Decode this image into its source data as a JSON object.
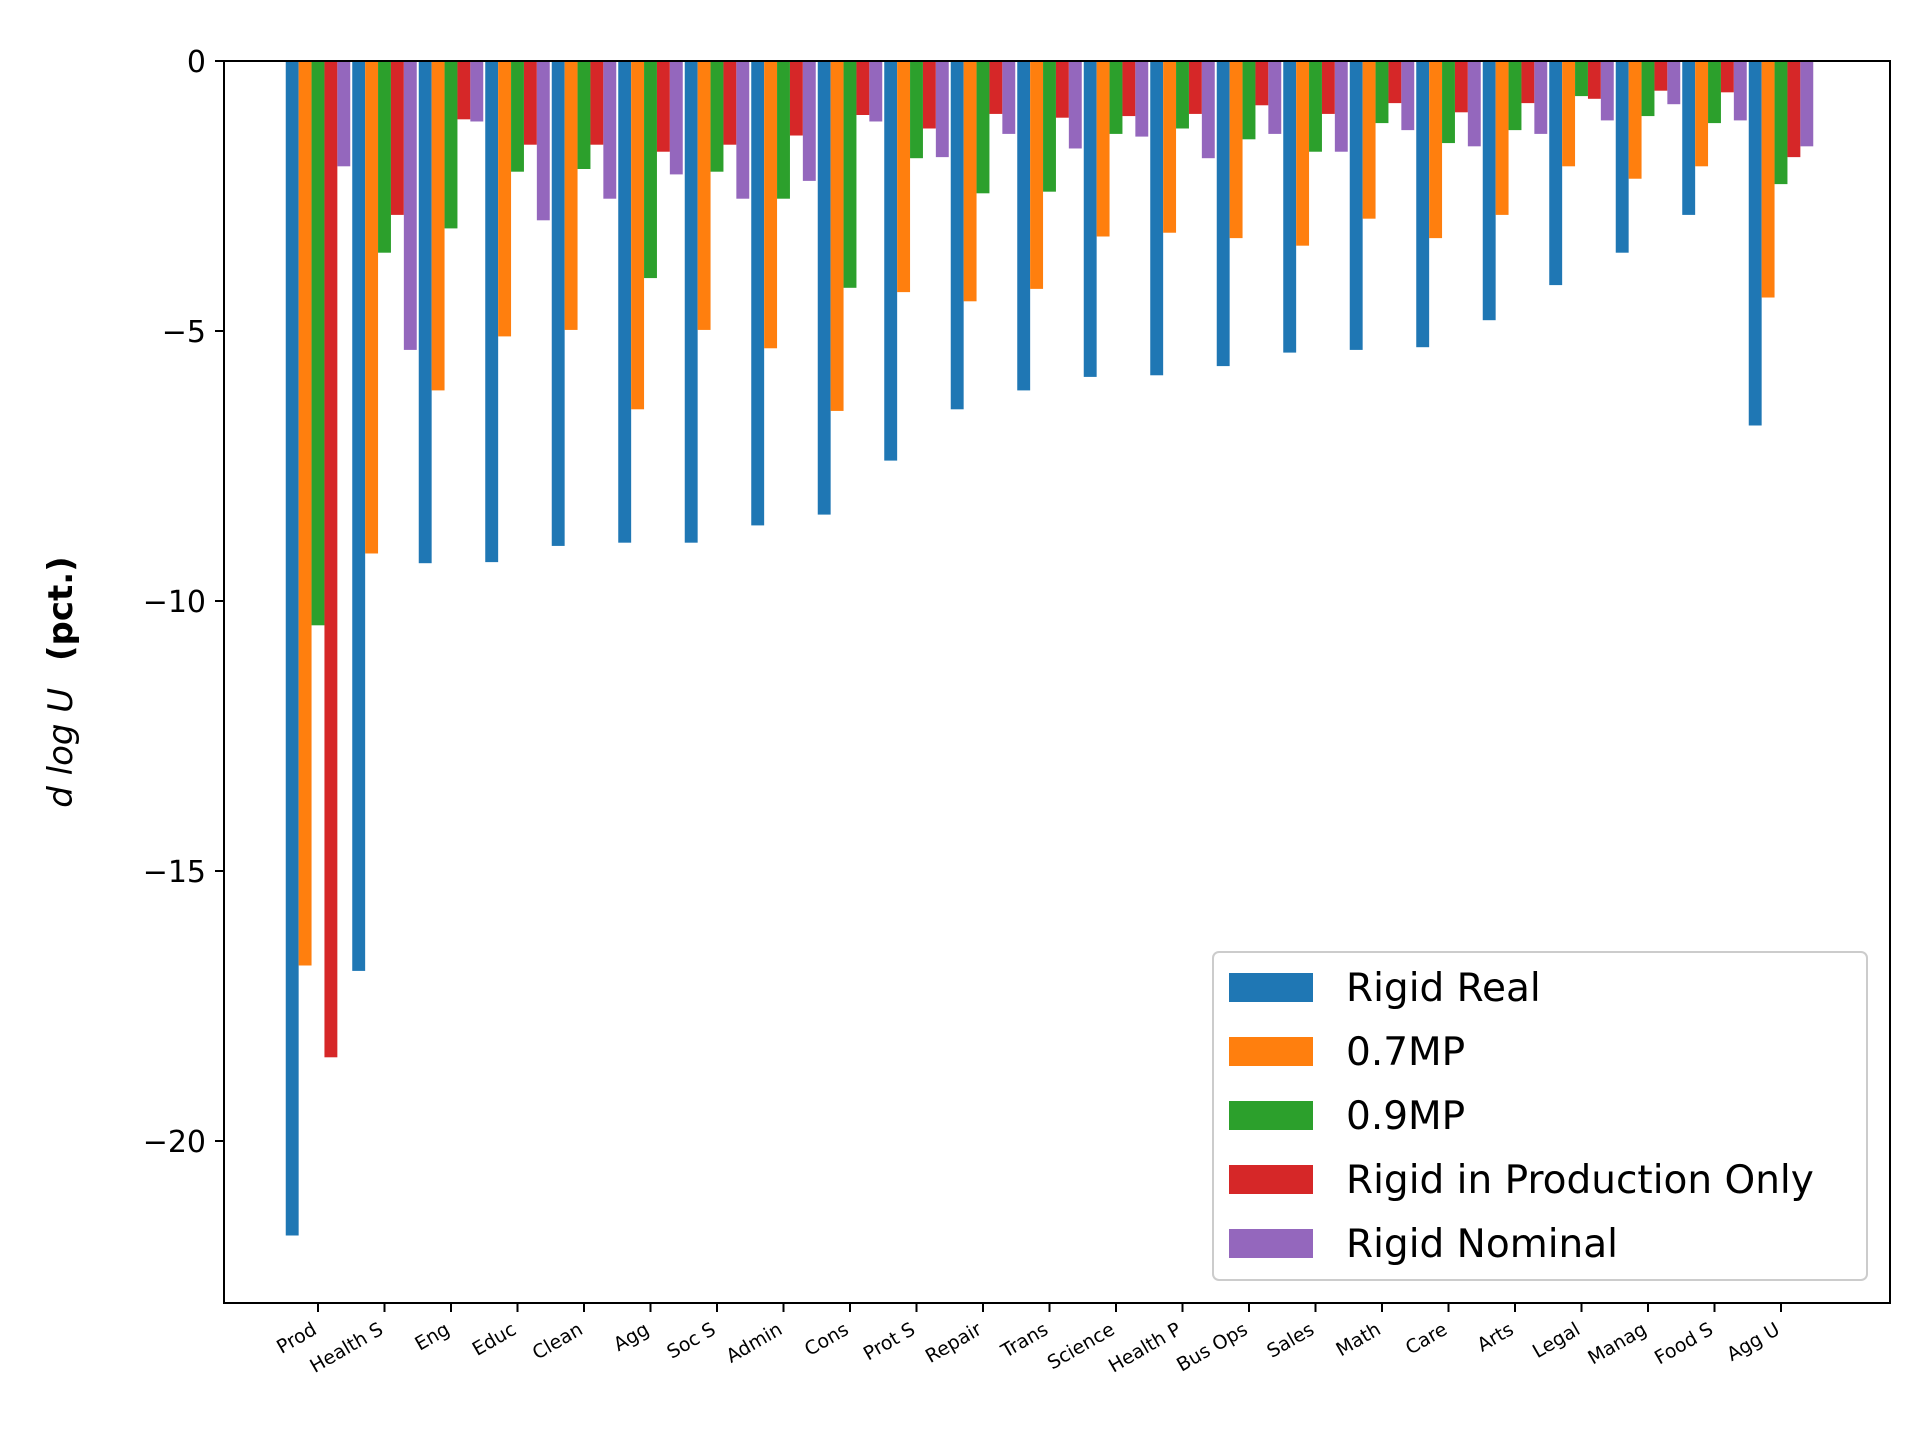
{
  "chart_data": {
    "type": "bar",
    "title": "",
    "xlabel": "",
    "ylabel": {
      "var": "d log U",
      "unit": "(pct.)"
    },
    "ylim": [
      -23,
      0
    ],
    "yticks": [
      0,
      -5,
      -10,
      -15,
      -20
    ],
    "ytick_labels": [
      "0",
      "−5",
      "−10",
      "−15",
      "−20"
    ],
    "grid": false,
    "legend_position": "lower-right",
    "categories": [
      "Prod",
      "Health S",
      "Eng",
      "Educ",
      "Clean",
      "Agg",
      "Soc S",
      "Admin",
      "Cons",
      "Prot S",
      "Repair",
      "Trans",
      "Science",
      "Health P",
      "Bus Ops",
      "Sales",
      "Math",
      "Care",
      "Arts",
      "Legal",
      "Manag",
      "Food S",
      "Agg U"
    ],
    "series": [
      {
        "name": "Rigid Real",
        "color": "#1f77b4",
        "values": [
          -21.75,
          -16.85,
          -9.3,
          -9.28,
          -8.98,
          -8.92,
          -8.92,
          -8.6,
          -8.4,
          -7.4,
          -6.45,
          -6.1,
          -5.85,
          -5.82,
          -5.65,
          -5.4,
          -5.35,
          -5.3,
          -4.8,
          -4.15,
          -3.55,
          -2.85,
          -6.75
        ]
      },
      {
        "name": "0.7MP",
        "color": "#ff7f0e",
        "values": [
          -16.75,
          -9.12,
          -6.1,
          -5.1,
          -4.98,
          -6.45,
          -4.98,
          -5.32,
          -6.48,
          -4.28,
          -4.45,
          -4.22,
          -3.25,
          -3.18,
          -3.28,
          -3.42,
          -2.92,
          -3.28,
          -2.85,
          -1.95,
          -2.18,
          -1.95,
          -4.38
        ]
      },
      {
        "name": "0.9MP",
        "color": "#2ca02c",
        "values": [
          -10.45,
          -3.55,
          -3.1,
          -2.05,
          -2.0,
          -4.02,
          -2.05,
          -2.55,
          -4.2,
          -1.8,
          -2.45,
          -2.42,
          -1.35,
          -1.25,
          -1.45,
          -1.68,
          -1.15,
          -1.52,
          -1.28,
          -0.65,
          -1.02,
          -1.15,
          -2.28
        ]
      },
      {
        "name": "Rigid in Production Only",
        "color": "#d62728",
        "values": [
          -18.45,
          -2.85,
          -1.08,
          -1.55,
          -1.55,
          -1.68,
          -1.55,
          -1.38,
          -1.0,
          -1.25,
          -0.98,
          -1.05,
          -1.02,
          -0.98,
          -0.82,
          -0.98,
          -0.78,
          -0.95,
          -0.78,
          -0.7,
          -0.55,
          -0.58,
          -1.78
        ]
      },
      {
        "name": "Rigid Nominal",
        "color": "#9467bd",
        "values": [
          -1.95,
          -5.35,
          -1.12,
          -2.95,
          -2.55,
          -2.1,
          -2.55,
          -2.22,
          -1.12,
          -1.78,
          -1.35,
          -1.62,
          -1.4,
          -1.8,
          -1.35,
          -1.68,
          -1.28,
          -1.58,
          -1.35,
          -1.1,
          -0.8,
          -1.1,
          -1.58
        ]
      }
    ]
  }
}
